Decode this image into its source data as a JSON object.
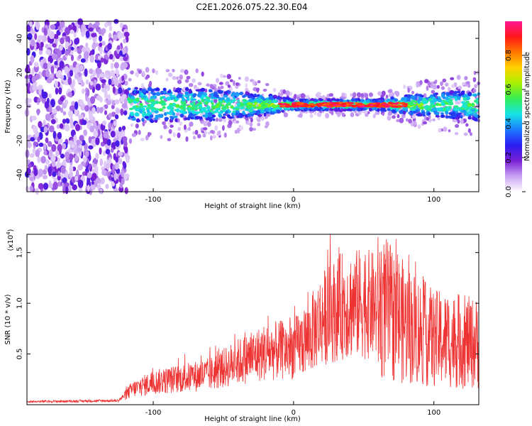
{
  "title": "C2E1.2026.075.22.30.E04",
  "chart_data": [
    {
      "type": "heatmap",
      "name": "spectrogram",
      "xlabel": "Height of straight line (km)",
      "ylabel": "Frequency (Hz)",
      "xlim": [
        -190,
        132
      ],
      "ylim": [
        -50,
        50
      ],
      "xticks": [
        -100,
        0,
        100
      ],
      "xtick_labels": [
        "-100",
        "0",
        "100"
      ],
      "yticks": [
        -40,
        -20,
        0,
        20,
        40
      ],
      "ytick_labels": [
        "-40",
        "-20",
        "0",
        "20",
        "40"
      ],
      "noise_region_x": [
        -190,
        -118
      ],
      "band_center_hz": 1,
      "band_halfwidth_profile": [
        {
          "x": -118,
          "hw": 10
        },
        {
          "x": -60,
          "hw": 9
        },
        {
          "x": -20,
          "hw": 6
        },
        {
          "x": 0,
          "hw": 3
        },
        {
          "x": 60,
          "hw": 3
        },
        {
          "x": 90,
          "hw": 6
        },
        {
          "x": 132,
          "hw": 9
        }
      ],
      "peak_segments_x": [
        [
          -10,
          80
        ]
      ]
    },
    {
      "type": "colorbar",
      "name": "amplitude-colorbar",
      "label": "Normalized spectral amplitude",
      "range": [
        0,
        1
      ],
      "ticks": [
        0.0,
        0.2,
        0.4,
        0.6,
        0.8
      ],
      "tick_labels": [
        "0.0",
        "0.2",
        "0.4",
        "0.6",
        "0.8"
      ],
      "colors": [
        "#ffffff",
        "#c8a2f2",
        "#7a1fd6",
        "#2a1cf0",
        "#1d7bff",
        "#18e3e6",
        "#33ee55",
        "#a8f000",
        "#ffd200",
        "#ff7800",
        "#ff1818",
        "#ff1493"
      ]
    },
    {
      "type": "line",
      "name": "snr",
      "xlabel": "Height of straight line (km)",
      "ylabel": "SNR (10 * v/v)",
      "y_multiplier_label": "(x10",
      "y_multiplier_exp": "4",
      "y_multiplier_close": ")",
      "xlim": [
        -190,
        132
      ],
      "ylim": [
        0,
        16800
      ],
      "xticks": [
        -100,
        0,
        100
      ],
      "xtick_labels": [
        "-100",
        "0",
        "100"
      ],
      "yticks": [
        5000,
        10000,
        15000
      ],
      "ytick_labels": [
        "0.5",
        "1.0",
        "1.5"
      ],
      "line_color": "#ee3333",
      "envelope": [
        {
          "x": -190,
          "y": 300
        },
        {
          "x": -125,
          "y": 400
        },
        {
          "x": -115,
          "y": 1500
        },
        {
          "x": -100,
          "y": 2200
        },
        {
          "x": -60,
          "y": 3000
        },
        {
          "x": -40,
          "y": 4200
        },
        {
          "x": -20,
          "y": 5200
        },
        {
          "x": 0,
          "y": 5500
        },
        {
          "x": 10,
          "y": 6500
        },
        {
          "x": 20,
          "y": 8500
        },
        {
          "x": 35,
          "y": 9800
        },
        {
          "x": 50,
          "y": 10000
        },
        {
          "x": 65,
          "y": 9500
        },
        {
          "x": 80,
          "y": 8000
        },
        {
          "x": 100,
          "y": 6500
        },
        {
          "x": 132,
          "y": 6000
        }
      ]
    }
  ]
}
